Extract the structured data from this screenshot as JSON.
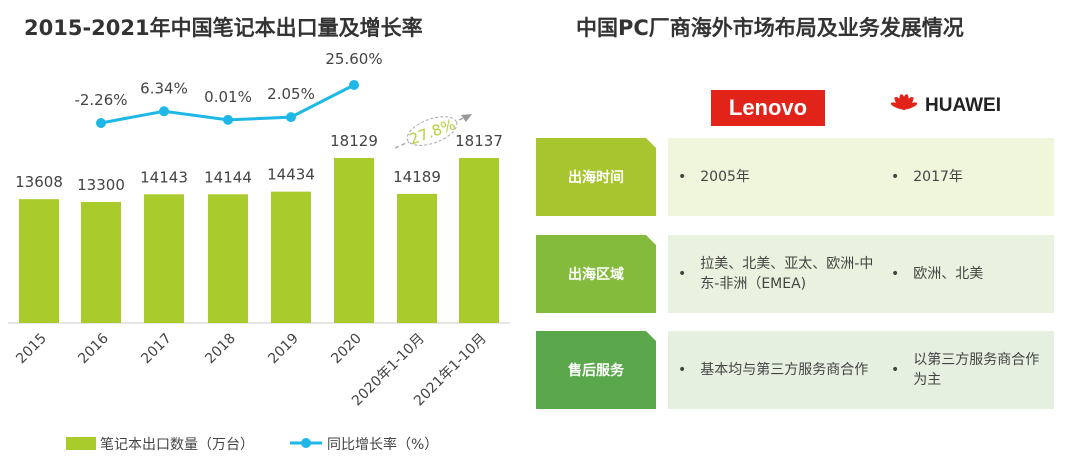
{
  "left_title": "2015-2021年中国笔记本出口量及增长率",
  "right_title": "中国PC厂商海外市场布局及业务发展情况",
  "chart_data": {
    "type": "bar+line",
    "title": "2015-2021年中国笔记本出口量及增长率",
    "categories": [
      "2015",
      "2016",
      "2017",
      "2018",
      "2019",
      "2020",
      "2020年1-10月",
      "2021年1-10月"
    ],
    "series": [
      {
        "name": "笔记本出口数量（万台）",
        "type": "bar",
        "color": "#a9cb2c",
        "values": [
          13608,
          13300,
          14143,
          14144,
          14434,
          18129,
          14189,
          18137
        ]
      },
      {
        "name": "同比增长率（%）",
        "type": "line",
        "color": "#1fb8e6",
        "values": [
          null,
          -2.26,
          6.34,
          0.01,
          2.05,
          25.6,
          null,
          null
        ],
        "labels": [
          "",
          "-2.26%",
          "6.34%",
          "0.01%",
          "2.05%",
          "25.60%",
          "",
          ""
        ]
      }
    ],
    "annotation": {
      "text": "27.8%",
      "from": "2020年1-10月",
      "to": "2021年1-10月",
      "color": "#b5d23c"
    }
  },
  "logos": {
    "lenovo": "Lenovo",
    "huawei": "HUAWEI"
  },
  "table": [
    {
      "label": "出海时间",
      "label_color": "#a6c52e",
      "bg": "#f0f6dc",
      "lenovo": "2005年",
      "huawei": "2017年"
    },
    {
      "label": "出海区域",
      "label_color": "#84bb3c",
      "bg": "#e9f2de",
      "lenovo": "拉美、北美、亚太、欧洲-中东-非洲（EMEA)",
      "huawei": "欧洲、北美"
    },
    {
      "label": "售后服务",
      "label_color": "#5aa84b",
      "bg": "#e6f0e1",
      "lenovo": "基本均与第三方服务商合作",
      "huawei": "以第三方服务商合作为主"
    }
  ]
}
